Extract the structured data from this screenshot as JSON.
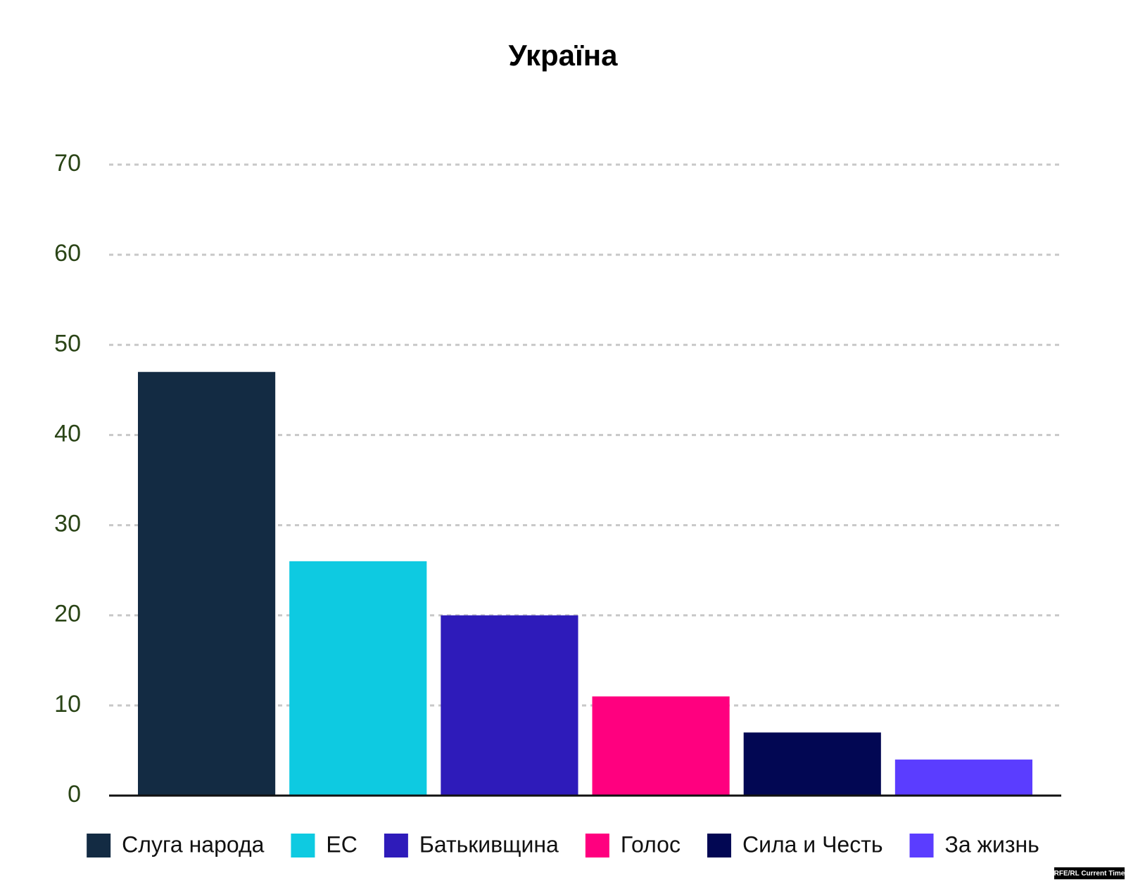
{
  "chart_data": {
    "type": "bar",
    "title": "Україна",
    "categories": [
      null
    ],
    "series": [
      {
        "name": "Слуга народа",
        "color": "#132b43",
        "values": [
          47
        ]
      },
      {
        "name": "ЕС",
        "color": "#0ecae1",
        "values": [
          26
        ]
      },
      {
        "name": "Батькивщина",
        "color": "#2e1bba",
        "values": [
          20
        ]
      },
      {
        "name": "Голос",
        "color": "#ff007f",
        "values": [
          11
        ]
      },
      {
        "name": "Сила и Честь",
        "color": "#020753",
        "values": [
          7
        ]
      },
      {
        "name": "За жизнь",
        "color": "#5b3dff",
        "values": [
          4
        ]
      }
    ],
    "ylim": [
      0,
      70
    ],
    "yticks": [
      0,
      10,
      20,
      30,
      40,
      50,
      60,
      70
    ],
    "grid": true,
    "legend": "bottom",
    "source": "RFE/RL Current Time"
  }
}
